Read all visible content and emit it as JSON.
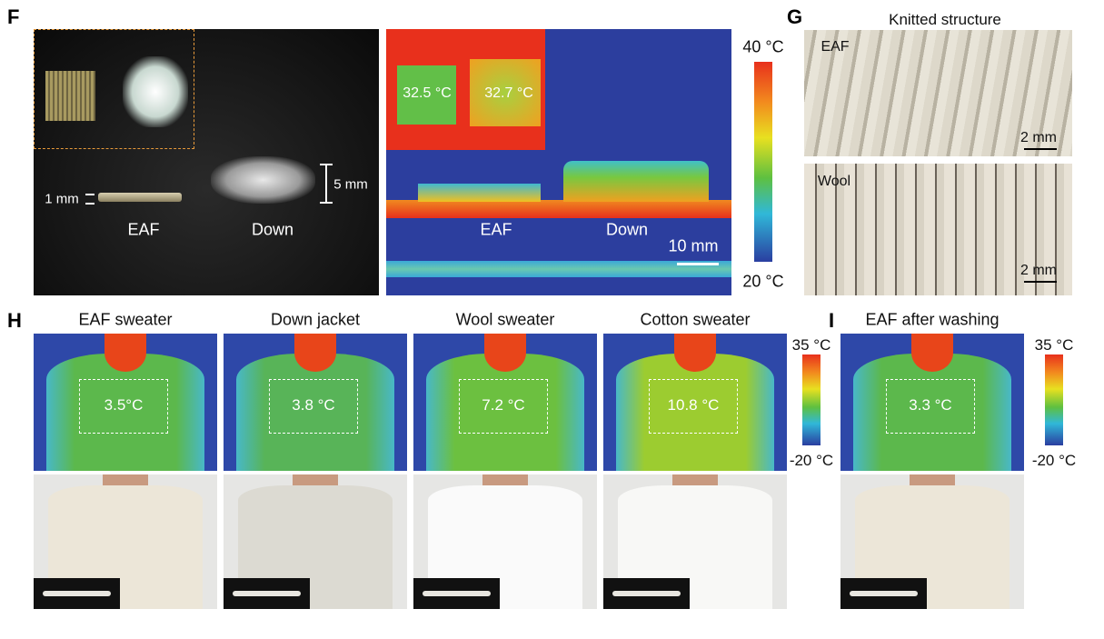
{
  "F": {
    "label": "F",
    "photo": {
      "one_mm": "1 mm",
      "five_mm": "5 mm",
      "eaf": "EAF",
      "down": "Down"
    },
    "thermal": {
      "eaf_temp": "32.5 °C",
      "down_temp": "32.7 °C",
      "eaf": "EAF",
      "down": "Down",
      "scale": "10 mm"
    },
    "colorbar": {
      "max": "40 °C",
      "min": "20 °C"
    }
  },
  "G": {
    "label": "G",
    "title": "Knitted structure",
    "eaf": {
      "name": "EAF",
      "scale": "2 mm"
    },
    "wool": {
      "name": "Wool",
      "scale": "2 mm"
    }
  },
  "H": {
    "label": "H",
    "panels": [
      {
        "title": "EAF sweater",
        "temp": "3.5°C"
      },
      {
        "title": "Down jacket",
        "temp": "3.8 °C"
      },
      {
        "title": "Wool sweater",
        "temp": "7.2 °C"
      },
      {
        "title": "Cotton sweater",
        "temp": "10.8 °C"
      }
    ],
    "colorbar": {
      "max": "35 °C",
      "min": "-20 °C"
    }
  },
  "I": {
    "label": "I",
    "title": "EAF after washing",
    "temp": "3.3 °C",
    "colorbar": {
      "max": "35 °C",
      "min": "-20 °C"
    }
  }
}
